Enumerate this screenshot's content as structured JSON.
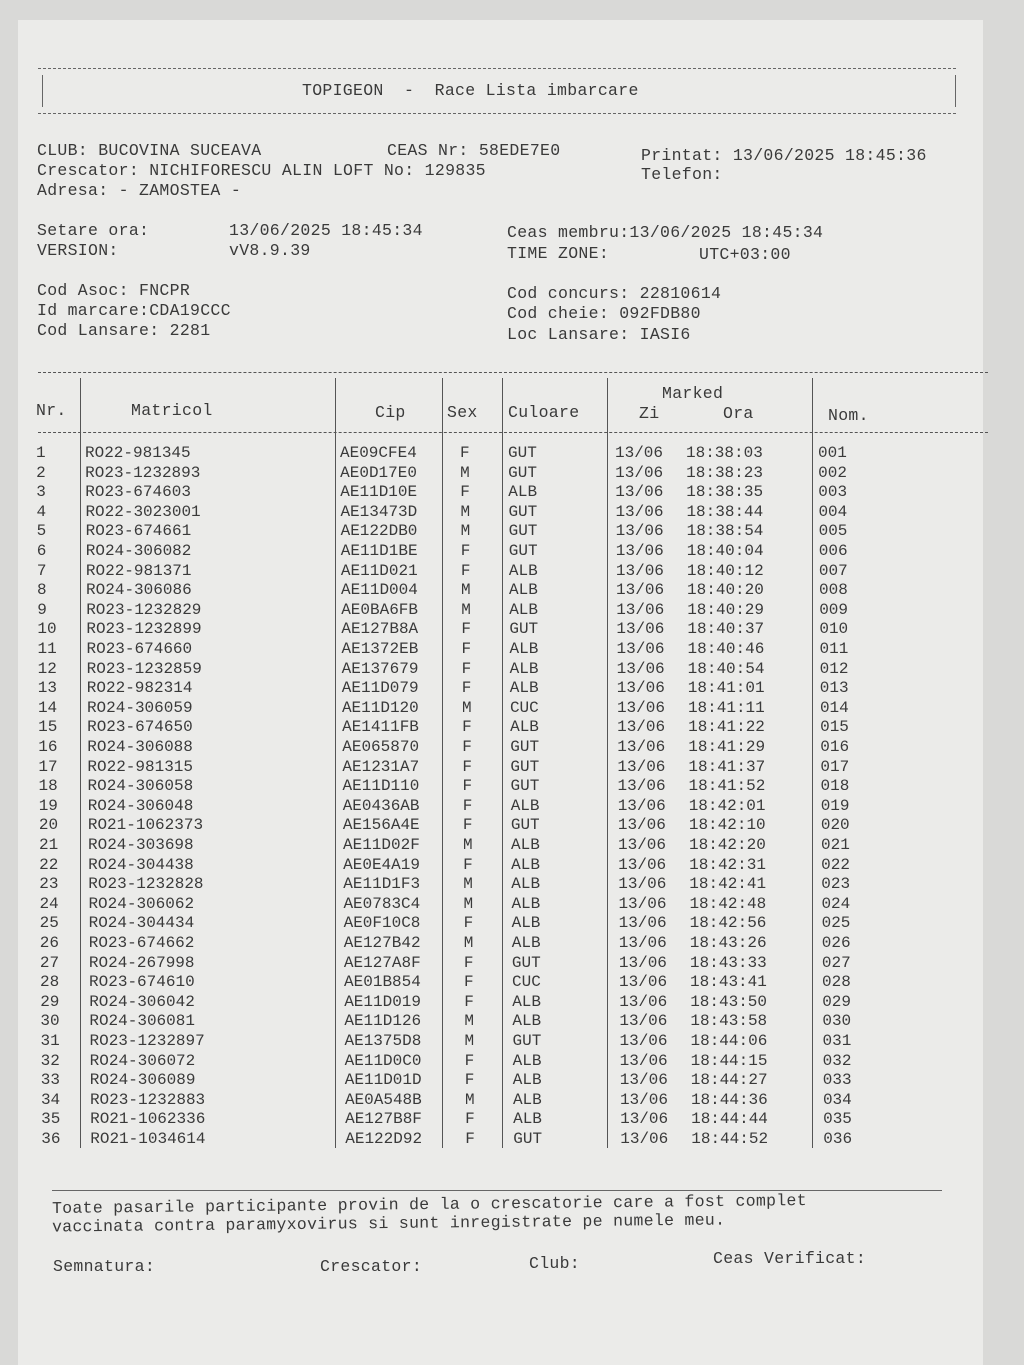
{
  "title": "TOPIGEON  -  Race Lista imbarcare",
  "info": {
    "club": "CLUB: BUCOVINA SUCEAVA",
    "ceas_nr": "CEAS Nr: 58EDE7E0",
    "printat": "Printat: 13/06/2025 18:45:36",
    "crescator": "Crescator: NICHIFORESCU ALIN LOFT No: 129835",
    "telefon": "Telefon:",
    "adresa": "Adresa: - ZAMOSTEA -",
    "setare_ora_label": "Setare ora:",
    "setare_ora": "13/06/2025 18:45:34",
    "version_label": "VERSION:",
    "version": "vV8.9.39",
    "ceas_membru": "Ceas membru:13/06/2025 18:45:34",
    "time_zone_label": "TIME ZONE:",
    "time_zone": "UTC+03:00",
    "cod_asoc": "Cod Asoc: FNCPR",
    "id_marcare": "Id marcare:CDA19CCC",
    "cod_lansare": "Cod Lansare: 2281",
    "cod_concurs": "Cod concurs: 22810614",
    "cod_cheie": "Cod cheie: 092FDB80",
    "loc_lansare": "Loc Lansare: IASI6"
  },
  "table": {
    "headers": {
      "nr": "Nr.",
      "matricol": "Matricol",
      "cip": "Cip",
      "sex": "Sex",
      "culoare": "Culoare",
      "marked": "Marked",
      "zi": "Zi",
      "ora": "Ora",
      "nom": "Nom."
    },
    "rows": [
      [
        "1",
        "RO22-981345",
        "AE09CFE4",
        "F",
        "GUT",
        "13/06",
        "18:38:03",
        "001"
      ],
      [
        "2",
        "RO23-1232893",
        "AE0D17E0",
        "M",
        "GUT",
        "13/06",
        "18:38:23",
        "002"
      ],
      [
        "3",
        "RO23-674603",
        "AE11D10E",
        "F",
        "ALB",
        "13/06",
        "18:38:35",
        "003"
      ],
      [
        "4",
        "RO22-3023001",
        "AE13473D",
        "M",
        "GUT",
        "13/06",
        "18:38:44",
        "004"
      ],
      [
        "5",
        "RO23-674661",
        "AE122DB0",
        "M",
        "GUT",
        "13/06",
        "18:38:54",
        "005"
      ],
      [
        "6",
        "RO24-306082",
        "AE11D1BE",
        "F",
        "GUT",
        "13/06",
        "18:40:04",
        "006"
      ],
      [
        "7",
        "RO22-981371",
        "AE11D021",
        "F",
        "ALB",
        "13/06",
        "18:40:12",
        "007"
      ],
      [
        "8",
        "RO24-306086",
        "AE11D004",
        "M",
        "ALB",
        "13/06",
        "18:40:20",
        "008"
      ],
      [
        "9",
        "RO23-1232829",
        "AE0BA6FB",
        "M",
        "ALB",
        "13/06",
        "18:40:29",
        "009"
      ],
      [
        "10",
        "RO23-1232899",
        "AE127B8A",
        "F",
        "GUT",
        "13/06",
        "18:40:37",
        "010"
      ],
      [
        "11",
        "RO23-674660",
        "AE1372EB",
        "F",
        "ALB",
        "13/06",
        "18:40:46",
        "011"
      ],
      [
        "12",
        "RO23-1232859",
        "AE137679",
        "F",
        "ALB",
        "13/06",
        "18:40:54",
        "012"
      ],
      [
        "13",
        "RO22-982314",
        "AE11D079",
        "F",
        "ALB",
        "13/06",
        "18:41:01",
        "013"
      ],
      [
        "14",
        "RO24-306059",
        "AE11D120",
        "M",
        "CUC",
        "13/06",
        "18:41:11",
        "014"
      ],
      [
        "15",
        "RO23-674650",
        "AE1411FB",
        "F",
        "ALB",
        "13/06",
        "18:41:22",
        "015"
      ],
      [
        "16",
        "RO24-306088",
        "AE065870",
        "F",
        "GUT",
        "13/06",
        "18:41:29",
        "016"
      ],
      [
        "17",
        "RO22-981315",
        "AE1231A7",
        "F",
        "GUT",
        "13/06",
        "18:41:37",
        "017"
      ],
      [
        "18",
        "RO24-306058",
        "AE11D110",
        "F",
        "GUT",
        "13/06",
        "18:41:52",
        "018"
      ],
      [
        "19",
        "RO24-306048",
        "AE0436AB",
        "F",
        "ALB",
        "13/06",
        "18:42:01",
        "019"
      ],
      [
        "20",
        "RO21-1062373",
        "AE156A4E",
        "F",
        "GUT",
        "13/06",
        "18:42:10",
        "020"
      ],
      [
        "21",
        "RO24-303698",
        "AE11D02F",
        "M",
        "ALB",
        "13/06",
        "18:42:20",
        "021"
      ],
      [
        "22",
        "RO24-304438",
        "AE0E4A19",
        "F",
        "ALB",
        "13/06",
        "18:42:31",
        "022"
      ],
      [
        "23",
        "RO23-1232828",
        "AE11D1F3",
        "M",
        "ALB",
        "13/06",
        "18:42:41",
        "023"
      ],
      [
        "24",
        "RO24-306062",
        "AE0783C4",
        "M",
        "ALB",
        "13/06",
        "18:42:48",
        "024"
      ],
      [
        "25",
        "RO24-304434",
        "AE0F10C8",
        "F",
        "ALB",
        "13/06",
        "18:42:56",
        "025"
      ],
      [
        "26",
        "RO23-674662",
        "AE127B42",
        "M",
        "ALB",
        "13/06",
        "18:43:26",
        "026"
      ],
      [
        "27",
        "RO24-267998",
        "AE127A8F",
        "F",
        "GUT",
        "13/06",
        "18:43:33",
        "027"
      ],
      [
        "28",
        "RO23-674610",
        "AE01B854",
        "F",
        "CUC",
        "13/06",
        "18:43:41",
        "028"
      ],
      [
        "29",
        "RO24-306042",
        "AE11D019",
        "F",
        "ALB",
        "13/06",
        "18:43:50",
        "029"
      ],
      [
        "30",
        "RO24-306081",
        "AE11D126",
        "M",
        "ALB",
        "13/06",
        "18:43:58",
        "030"
      ],
      [
        "31",
        "RO23-1232897",
        "AE1375D8",
        "M",
        "GUT",
        "13/06",
        "18:44:06",
        "031"
      ],
      [
        "32",
        "RO24-306072",
        "AE11D0C0",
        "F",
        "ALB",
        "13/06",
        "18:44:15",
        "032"
      ],
      [
        "33",
        "RO24-306089",
        "AE11D01D",
        "F",
        "ALB",
        "13/06",
        "18:44:27",
        "033"
      ],
      [
        "34",
        "RO23-1232883",
        "AE0A548B",
        "M",
        "ALB",
        "13/06",
        "18:44:36",
        "034"
      ],
      [
        "35",
        "RO21-1062336",
        "AE127B8F",
        "F",
        "ALB",
        "13/06",
        "18:44:44",
        "035"
      ],
      [
        "36",
        "RO21-1034614",
        "AE122D92",
        "F",
        "GUT",
        "13/06",
        "18:44:52",
        "036"
      ]
    ]
  },
  "footer": {
    "statement_line1": "Toate pasarile participante provin de la o crescatorie care a fost complet",
    "statement_line2": "vaccinata contra paramyxovirus si sunt inregistrate pe numele meu.",
    "semnatura": "Semnatura:",
    "crescator": "Crescator:",
    "club": "Club:",
    "ceas_verificat": "Ceas Verificat:"
  }
}
